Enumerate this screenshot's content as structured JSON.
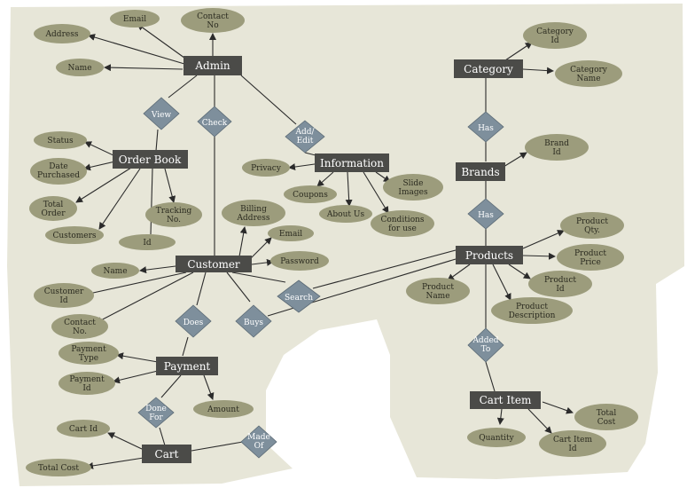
{
  "colors": {
    "background": "#e7e6d8",
    "entity_fill": "#4b4b48",
    "attribute_fill": "#9c9c7c",
    "relationship_fill": "#7e8f9c",
    "line": "#2b2b2b"
  },
  "entities": {
    "admin": "Admin",
    "order_book": "Order Book",
    "information": "Information",
    "category": "Category",
    "brands": "Brands",
    "products": "Products",
    "customer": "Customer",
    "payment": "Payment",
    "cart": "Cart",
    "cart_item": "Cart Item"
  },
  "relationships": {
    "view": "View",
    "check": "Check",
    "add_edit": [
      "Add/",
      "Edit"
    ],
    "has_category": "Has",
    "has_brands": "Has",
    "search": "Search",
    "does": "Does",
    "buys": "Buys",
    "added_to": [
      "Added",
      "To"
    ],
    "done_for": [
      "Done",
      "For"
    ],
    "made_of": [
      "Made",
      "Of"
    ]
  },
  "attributes": {
    "email": "Email",
    "contact_no_admin": [
      "Contact",
      "No"
    ],
    "address": "Address",
    "name_admin": "Name",
    "status": "Status",
    "date_purchased": [
      "Date",
      "Purchased"
    ],
    "total_order": [
      "Total",
      "Order"
    ],
    "customers": "Customers",
    "tracking_no": [
      "Tracking",
      "No."
    ],
    "id_order": "Id",
    "privacy": "Privacy",
    "coupons": "Coupons",
    "about_us": "About Us",
    "conditions_for_use": [
      "Conditions",
      "for use"
    ],
    "slide_images": [
      "Slide",
      "Images"
    ],
    "category_id": [
      "Category",
      "Id"
    ],
    "category_name": [
      "Category",
      "Name"
    ],
    "brand_id": [
      "Brand",
      "Id"
    ],
    "product_qty": [
      "Product",
      "Qty."
    ],
    "product_price": [
      "Product",
      "Price"
    ],
    "product_id": [
      "Product",
      "Id"
    ],
    "product_name": [
      "Product",
      "Name"
    ],
    "product_description": [
      "Product",
      "Description"
    ],
    "billing_address": [
      "Billing",
      "Address"
    ],
    "email_customer": "Email",
    "password": "Password",
    "name_customer": "Name",
    "customer_id": [
      "Customer",
      "Id"
    ],
    "contact_no_customer": [
      "Contact",
      "No."
    ],
    "payment_type": [
      "Payment",
      "Type"
    ],
    "payment_id": [
      "Payment",
      "Id"
    ],
    "amount": "Amount",
    "cart_id": "Cart Id",
    "total_cost_cart": "Total Cost",
    "total_cost_item": [
      "Total",
      "Cost"
    ],
    "quantity": "Quantity",
    "cart_item_id": [
      "Cart Item",
      "Id"
    ]
  }
}
